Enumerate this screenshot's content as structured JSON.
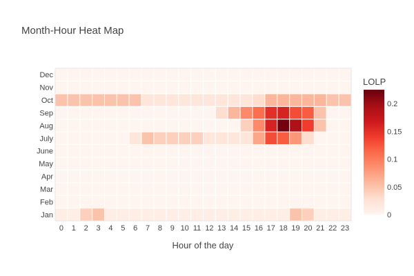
{
  "chart_data": {
    "type": "heatmap",
    "title": "Month-Hour Heat Map",
    "xlabel": "Hour of the day",
    "ylabel": "",
    "x": [
      "0",
      "1",
      "2",
      "3",
      "4",
      "5",
      "6",
      "7",
      "8",
      "9",
      "10",
      "11",
      "12",
      "13",
      "14",
      "15",
      "16",
      "17",
      "18",
      "19",
      "20",
      "21",
      "22",
      "23"
    ],
    "y": [
      "Jan",
      "Feb",
      "Mar",
      "Apr",
      "May",
      "June",
      "July",
      "Aug",
      "Sep",
      "Oct",
      "Nov",
      "Dec"
    ],
    "colorbar_title": "LOLP",
    "colorbar_ticks": [
      "0",
      "0.05",
      "0.1",
      "0.15",
      "0.2"
    ],
    "zlim": [
      0,
      0.225
    ],
    "colorscale": "Reds",
    "z": [
      [
        0.01,
        0.01,
        0.04,
        0.05,
        0.01,
        0.01,
        0.01,
        0.01,
        0.01,
        0.01,
        0.01,
        0.01,
        0.01,
        0.01,
        0.01,
        0.01,
        0.01,
        0.01,
        0.01,
        0.05,
        0.04,
        0.01,
        0.01,
        0.01
      ],
      [
        0,
        0,
        0,
        0,
        0,
        0,
        0,
        0,
        0,
        0,
        0,
        0,
        0,
        0,
        0,
        0,
        0,
        0,
        0,
        0,
        0,
        0,
        0,
        0
      ],
      [
        0,
        0,
        0,
        0,
        0,
        0,
        0,
        0,
        0,
        0,
        0,
        0,
        0,
        0,
        0,
        0,
        0,
        0,
        0,
        0,
        0,
        0,
        0,
        0
      ],
      [
        0,
        0,
        0,
        0,
        0,
        0,
        0,
        0,
        0,
        0,
        0,
        0,
        0,
        0,
        0,
        0,
        0,
        0,
        0,
        0,
        0,
        0,
        0,
        0
      ],
      [
        0,
        0,
        0,
        0,
        0,
        0,
        0,
        0,
        0,
        0,
        0,
        0,
        0,
        0,
        0,
        0,
        0,
        0,
        0,
        0,
        0,
        0,
        0,
        0
      ],
      [
        0,
        0,
        0,
        0,
        0,
        0,
        0,
        0,
        0,
        0,
        0,
        0,
        0,
        0,
        0,
        0,
        0,
        0,
        0,
        0,
        0,
        0,
        0,
        0
      ],
      [
        0,
        0,
        0,
        0,
        0,
        0,
        0.02,
        0.05,
        0.04,
        0.04,
        0.04,
        0.04,
        0.02,
        0.02,
        0.02,
        0.02,
        0.07,
        0.13,
        0.12,
        0.08,
        0.03,
        0,
        0,
        0
      ],
      [
        0,
        0,
        0,
        0,
        0,
        0,
        0,
        0,
        0,
        0,
        0,
        0,
        0,
        0,
        0,
        0.04,
        0.09,
        0.16,
        0.22,
        0.19,
        0.14,
        0.05,
        0,
        0
      ],
      [
        0,
        0,
        0,
        0,
        0,
        0,
        0,
        0,
        0,
        0,
        0,
        0,
        0,
        0.03,
        0.06,
        0.09,
        0.11,
        0.15,
        0.16,
        0.13,
        0.12,
        0.05,
        0,
        0
      ],
      [
        0.05,
        0.05,
        0.05,
        0.05,
        0.05,
        0.05,
        0.05,
        0.02,
        0.02,
        0.02,
        0.02,
        0.02,
        0.02,
        0.02,
        0.02,
        0.02,
        0.03,
        0.06,
        0.06,
        0.06,
        0.06,
        0.06,
        0.05,
        0.05
      ],
      [
        0,
        0,
        0,
        0,
        0,
        0,
        0,
        0,
        0,
        0,
        0,
        0,
        0,
        0,
        0,
        0,
        0,
        0,
        0,
        0,
        0,
        0,
        0,
        0
      ],
      [
        0,
        0,
        0,
        0,
        0,
        0,
        0,
        0,
        0,
        0,
        0,
        0,
        0,
        0,
        0,
        0,
        0,
        0,
        0,
        0,
        0,
        0,
        0,
        0
      ]
    ]
  }
}
